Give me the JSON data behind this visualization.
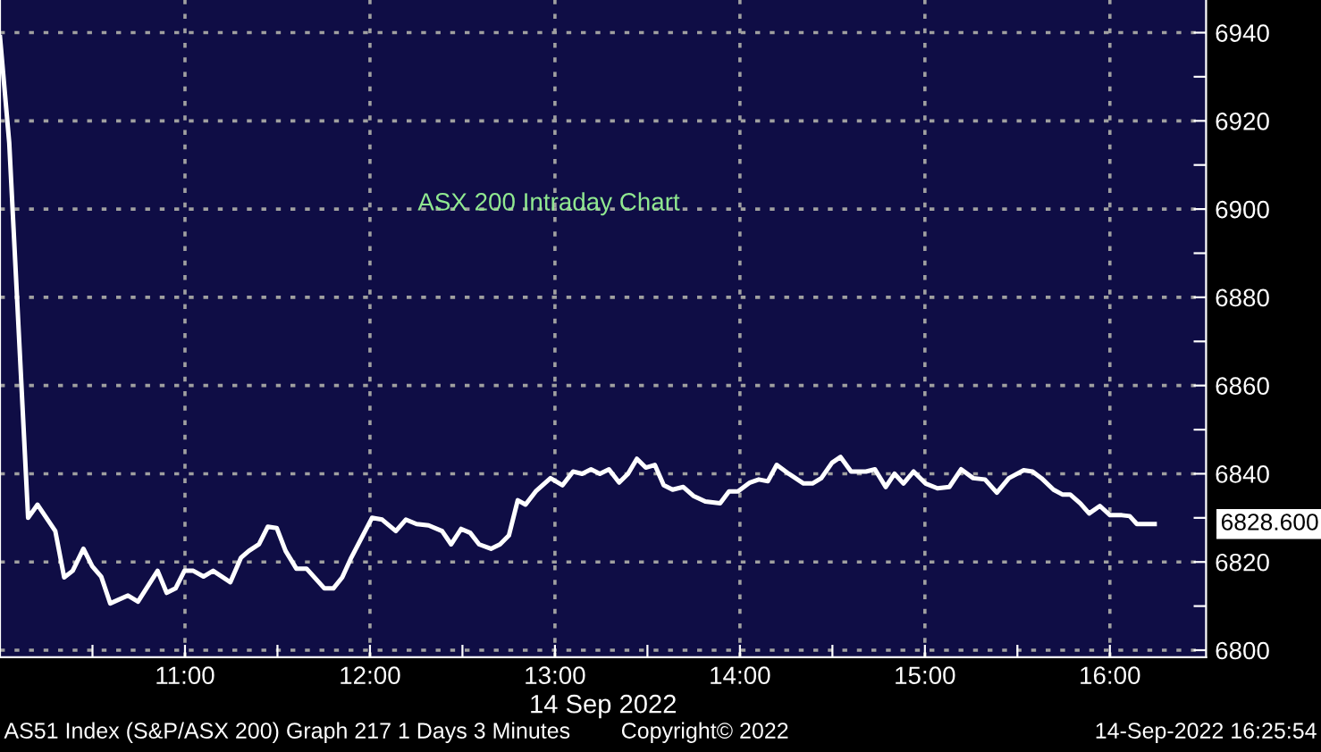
{
  "chart_data": {
    "type": "line",
    "title": "ASX 200 Intraday Chart",
    "xlabel": "14 Sep 2022",
    "annotations": [
      "6828.600",
      "AS51 Index (S&P/ASX 200) Graph 217 1 Days 3 Minutes",
      "Copyright© 2022",
      "14-Sep-2022 16:25:54"
    ],
    "series": [
      {
        "color": "#ffffff",
        "x": [
          10.0,
          10.05,
          10.152,
          10.203,
          10.299,
          10.347,
          10.393,
          10.451,
          10.499,
          10.547,
          10.596,
          10.692,
          10.746,
          10.852,
          10.901,
          10.949,
          10.997,
          11.045,
          11.1,
          11.152,
          11.245,
          11.303,
          11.345,
          11.4,
          11.448,
          11.496,
          11.544,
          11.602,
          11.657,
          11.754,
          11.802,
          11.85,
          11.899,
          12.011,
          12.066,
          12.14,
          12.194,
          12.252,
          12.317,
          12.39,
          12.439,
          12.493,
          12.542,
          12.59,
          12.654,
          12.703,
          12.751,
          12.799,
          12.841,
          12.896,
          12.976,
          13.041,
          13.098,
          13.147,
          13.195,
          13.243,
          13.292,
          13.347,
          13.395,
          13.443,
          13.491,
          13.54,
          13.588,
          13.636,
          13.694,
          13.748,
          13.813,
          13.893,
          13.941,
          13.989,
          14.054,
          14.102,
          14.151,
          14.199,
          14.264,
          14.344,
          14.392,
          14.44,
          14.498,
          14.544,
          14.601,
          14.681,
          14.73,
          14.788,
          14.836,
          14.884,
          14.939,
          15.003,
          15.068,
          15.132,
          15.196,
          15.261,
          15.325,
          15.389,
          15.454,
          15.534,
          15.582,
          15.63,
          15.695,
          15.743,
          15.785,
          15.84,
          15.888,
          15.946,
          16.001,
          16.065,
          16.107,
          16.146,
          16.242
        ],
        "values": [
          6939,
          6915,
          6830,
          6833,
          6827,
          6816.5,
          6818,
          6823,
          6819,
          6816.7,
          6810.6,
          6812.4,
          6811,
          6818,
          6813,
          6814,
          6818,
          6818,
          6816.7,
          6818,
          6815.4,
          6821,
          6822.5,
          6824,
          6828,
          6827.7,
          6822.5,
          6818.5,
          6818.5,
          6814,
          6814,
          6816.5,
          6821,
          6830,
          6829.6,
          6827,
          6829.6,
          6828.6,
          6828.3,
          6827,
          6824,
          6827.5,
          6826.6,
          6824,
          6823,
          6824,
          6826,
          6834,
          6833,
          6836,
          6839,
          6837.4,
          6840.5,
          6840,
          6841,
          6840,
          6841,
          6838,
          6840,
          6843.4,
          6841.4,
          6842,
          6837.4,
          6836.4,
          6837,
          6835,
          6833.7,
          6833.3,
          6836,
          6836,
          6838,
          6838.7,
          6838.3,
          6842,
          6840,
          6837.8,
          6837.8,
          6839,
          6842.5,
          6843.8,
          6840.5,
          6840.5,
          6841,
          6837,
          6840,
          6837.8,
          6840.5,
          6837.8,
          6836.7,
          6837,
          6841,
          6839,
          6838.7,
          6835.7,
          6839,
          6840.8,
          6840.5,
          6839,
          6836.4,
          6835.3,
          6835.3,
          6833.3,
          6831,
          6832.7,
          6830.6,
          6830.6,
          6830.4,
          6828.6,
          6828.6
        ]
      }
    ],
    "xlim": [
      10.0,
      16.52
    ],
    "ylim": [
      6798.4,
      6947.4
    ],
    "xticks": [
      {
        "value": 10.5,
        "label": null
      },
      {
        "value": 11,
        "label": "11:00"
      },
      {
        "value": 11.5,
        "label": null
      },
      {
        "value": 12,
        "label": "12:00"
      },
      {
        "value": 12.5,
        "label": null
      },
      {
        "value": 13,
        "label": "13:00"
      },
      {
        "value": 13.5,
        "label": null
      },
      {
        "value": 14,
        "label": "14:00"
      },
      {
        "value": 14.5,
        "label": null
      },
      {
        "value": 15,
        "label": "15:00"
      },
      {
        "value": 15.5,
        "label": null
      },
      {
        "value": 16,
        "label": "16:00"
      }
    ],
    "yticks": [
      6800,
      {
        "value": 6810,
        "label": null
      },
      6820,
      {
        "value": 6830,
        "label": null
      },
      6840,
      {
        "value": 6850,
        "label": null
      },
      6860,
      {
        "value": 6870,
        "label": null
      },
      6880,
      {
        "value": 6890,
        "label": null
      },
      6900,
      {
        "value": 6910,
        "label": null
      },
      6920,
      {
        "value": 6930,
        "label": null
      },
      6940
    ],
    "grid": true,
    "legend": false
  }
}
